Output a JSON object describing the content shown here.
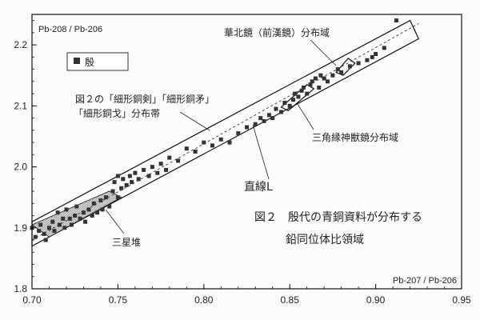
{
  "chart_data": {
    "type": "scatter",
    "title": "",
    "xlabel": "Pb-207 / Pb-206",
    "ylabel": "Pb-208 / Pb-206",
    "xlim": [
      0.7,
      0.95
    ],
    "ylim": [
      1.8,
      2.25
    ],
    "xticks": [
      "0.70",
      "0.75",
      "0.80",
      "0.85",
      "0.90",
      "0.95"
    ],
    "yticks": [
      "1.8",
      "1.9",
      "2.0",
      "2.1",
      "2.2"
    ],
    "grid": false,
    "legend": {
      "position": "top-left",
      "entries": [
        {
          "marker": "square",
          "label": "殷"
        }
      ]
    },
    "series": [
      {
        "name": "殷",
        "marker": "square",
        "points": [
          [
            0.7,
            1.9
          ],
          [
            0.702,
            1.885
          ],
          [
            0.704,
            1.895
          ],
          [
            0.705,
            1.905
          ],
          [
            0.707,
            1.89
          ],
          [
            0.708,
            1.88
          ],
          [
            0.71,
            1.9
          ],
          [
            0.712,
            1.91
          ],
          [
            0.713,
            1.895
          ],
          [
            0.715,
            1.925
          ],
          [
            0.716,
            1.905
          ],
          [
            0.718,
            1.915
          ],
          [
            0.719,
            1.9
          ],
          [
            0.72,
            1.93
          ],
          [
            0.722,
            1.915
          ],
          [
            0.723,
            1.905
          ],
          [
            0.725,
            1.92
          ],
          [
            0.726,
            1.935
          ],
          [
            0.728,
            1.915
          ],
          [
            0.73,
            1.925
          ],
          [
            0.731,
            1.91
          ],
          [
            0.733,
            1.93
          ],
          [
            0.735,
            1.92
          ],
          [
            0.736,
            1.94
          ],
          [
            0.738,
            1.925
          ],
          [
            0.74,
            1.945
          ],
          [
            0.741,
            1.93
          ],
          [
            0.743,
            1.95
          ],
          [
            0.745,
            1.935
          ],
          [
            0.747,
            1.96
          ],
          [
            0.748,
            1.975
          ],
          [
            0.75,
            1.95
          ],
          [
            0.75,
            1.985
          ],
          [
            0.752,
            1.965
          ],
          [
            0.753,
            1.98
          ],
          [
            0.755,
            1.97
          ],
          [
            0.757,
            1.985
          ],
          [
            0.758,
            1.975
          ],
          [
            0.76,
            1.99
          ],
          [
            0.762,
            1.98
          ],
          [
            0.765,
            1.995
          ],
          [
            0.768,
            1.985
          ],
          [
            0.77,
            2.0
          ],
          [
            0.773,
            1.99
          ],
          [
            0.775,
            2.005
          ],
          [
            0.778,
            1.995
          ],
          [
            0.78,
            2.015
          ],
          [
            0.785,
            2.01
          ],
          [
            0.79,
            2.03
          ],
          [
            0.795,
            2.025
          ],
          [
            0.8,
            2.04
          ],
          [
            0.805,
            2.035
          ],
          [
            0.81,
            2.045
          ],
          [
            0.815,
            2.04
          ],
          [
            0.82,
            2.055
          ],
          [
            0.825,
            2.065
          ],
          [
            0.83,
            2.07
          ],
          [
            0.833,
            2.08
          ],
          [
            0.835,
            2.075
          ],
          [
            0.838,
            2.085
          ],
          [
            0.84,
            2.08
          ],
          [
            0.842,
            2.095
          ],
          [
            0.845,
            2.09
          ],
          [
            0.847,
            2.105
          ],
          [
            0.85,
            2.1
          ],
          [
            0.852,
            2.11
          ],
          [
            0.853,
            2.12
          ],
          [
            0.855,
            2.115
          ],
          [
            0.857,
            2.125
          ],
          [
            0.858,
            2.13
          ],
          [
            0.86,
            2.12
          ],
          [
            0.862,
            2.135
          ],
          [
            0.863,
            2.14
          ],
          [
            0.865,
            2.145
          ],
          [
            0.867,
            2.13
          ],
          [
            0.868,
            2.15
          ],
          [
            0.87,
            2.145
          ],
          [
            0.872,
            2.14
          ],
          [
            0.875,
            2.15
          ],
          [
            0.878,
            2.16
          ],
          [
            0.88,
            2.155
          ],
          [
            0.885,
            2.165
          ],
          [
            0.89,
            2.17
          ],
          [
            0.895,
            2.175
          ],
          [
            0.898,
            2.18
          ],
          [
            0.9,
            2.185
          ],
          [
            0.905,
            2.195
          ],
          [
            0.912,
            2.24
          ]
        ]
      }
    ],
    "reference_line": {
      "name": "直線L",
      "style": "dashed",
      "from": [
        0.7,
        1.88
      ],
      "to": [
        0.925,
        2.235
      ]
    },
    "regions": [
      {
        "label": "図２の「細形銅剣」「細形銅矛」「細形銅戈」分布帯",
        "label_lines": [
          "図２の「細形銅剣」「細形銅矛」",
          "「細形銅戈」分布帯"
        ],
        "style": "outline",
        "polygon": [
          [
            0.7,
            1.91
          ],
          [
            0.92,
            2.24
          ],
          [
            0.925,
            2.21
          ],
          [
            0.7,
            1.87
          ]
        ]
      },
      {
        "label": "三星堆",
        "style": "hatched",
        "polygon": [
          [
            0.7,
            1.905
          ],
          [
            0.745,
            1.96
          ],
          [
            0.752,
            1.95
          ],
          [
            0.71,
            1.885
          ]
        ]
      },
      {
        "label": "華北鏡（前漢鏡）分布域",
        "style": "outline",
        "polygon": [
          [
            0.877,
            2.155
          ],
          [
            0.884,
            2.178
          ],
          [
            0.888,
            2.17
          ],
          [
            0.881,
            2.15
          ]
        ]
      },
      {
        "label": "三角縁神獣鏡分布域",
        "style": "outline",
        "polygon": [
          [
            0.845,
            2.098
          ],
          [
            0.86,
            2.135
          ],
          [
            0.864,
            2.128
          ],
          [
            0.849,
            2.092
          ]
        ]
      }
    ],
    "caption": {
      "lines": [
        "図２　殷代の青銅資料が分布する",
        "鉛同位体比領域"
      ]
    }
  }
}
